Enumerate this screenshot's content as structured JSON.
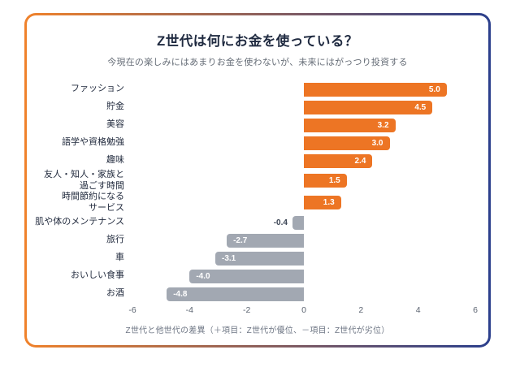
{
  "header": {
    "title": "Z世代は何にお金を使っている？",
    "subtitle": "今現在の楽しみにはあまりお金を使わないが、未来にはがっつり投資する"
  },
  "chart_data": {
    "type": "bar",
    "orientation": "horizontal",
    "title": "Z世代は何にお金を使っている？",
    "subtitle": "今現在の楽しみにはあまりお金を使わないが、未来にはがっつり投資する",
    "categories": [
      "ファッション",
      "貯金",
      "美容",
      "語学や資格勉強",
      "趣味",
      "友人・知人・家族と過ごす時間",
      "時間節約になるサービス",
      "肌や体のメンテナンス",
      "旅行",
      "車",
      "おいしい食事",
      "お酒"
    ],
    "values": [
      5.0,
      4.5,
      3.2,
      3.0,
      2.4,
      1.5,
      1.3,
      -0.4,
      -2.7,
      -3.1,
      -4.0,
      -4.8
    ],
    "items": [
      {
        "label_lines": [
          "ファッション"
        ],
        "value": 5.0
      },
      {
        "label_lines": [
          "貯金"
        ],
        "value": 4.5
      },
      {
        "label_lines": [
          "美容"
        ],
        "value": 3.2
      },
      {
        "label_lines": [
          "語学や資格勉強"
        ],
        "value": 3.0
      },
      {
        "label_lines": [
          "趣味"
        ],
        "value": 2.4
      },
      {
        "label_lines": [
          "友人・知人・家族と",
          "過ごす時間"
        ],
        "value": 1.5
      },
      {
        "label_lines": [
          "時間節約になる",
          "サービス"
        ],
        "value": 1.3
      },
      {
        "label_lines": [
          "肌や体のメンテナンス"
        ],
        "value": -0.4
      },
      {
        "label_lines": [
          "旅行"
        ],
        "value": -2.7
      },
      {
        "label_lines": [
          "車"
        ],
        "value": -3.1
      },
      {
        "label_lines": [
          "おいしい食事"
        ],
        "value": -4.0
      },
      {
        "label_lines": [
          "お酒"
        ],
        "value": -4.8
      }
    ],
    "x_ticks": [
      -6,
      -4,
      -2,
      0,
      2,
      4,
      6
    ],
    "xlim": [
      -6,
      6
    ],
    "grid": false,
    "legend": false,
    "xlabel": "",
    "ylabel": "",
    "caption": "Z世代と他世代の差異（＋項目：Z世代が優位、－項目：Z世代が劣位）",
    "colors": {
      "positive_bar": "#ED7524",
      "negative_bar": "#A2A8B2",
      "outside_value_text": "#3B4454",
      "inside_value_text": "#FFFFFF"
    }
  },
  "frame": {
    "border_gradient_left": "#F0822B",
    "border_gradient_right": "#2B3F8C",
    "card_background": "#FFFFFF",
    "title_color": "#1F2A40",
    "subtitle_color": "#666D77"
  }
}
